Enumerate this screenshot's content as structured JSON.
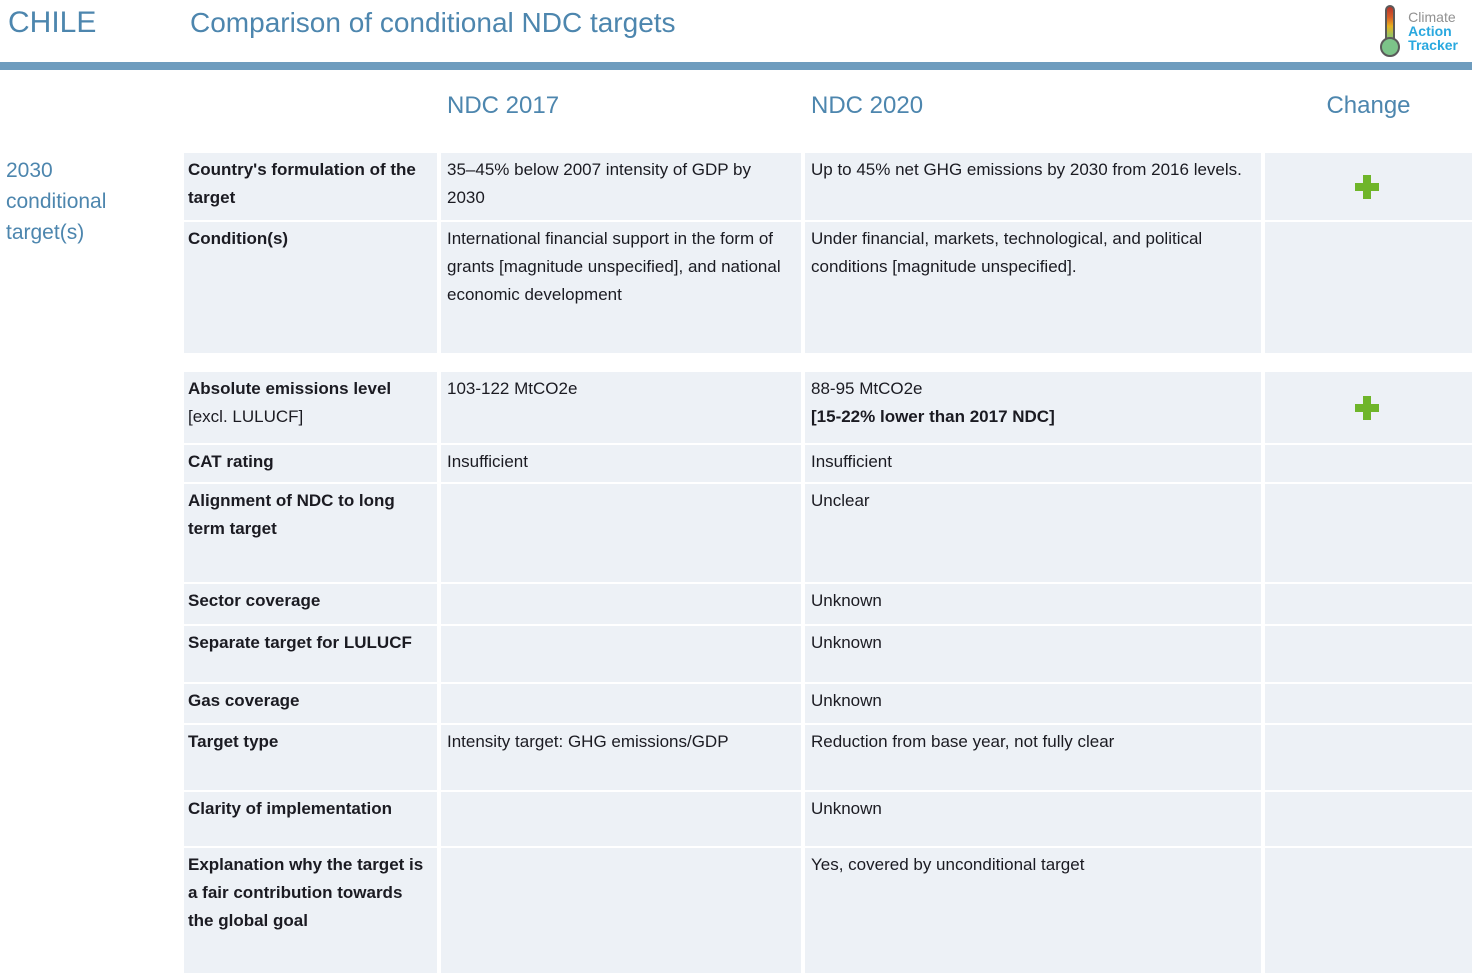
{
  "header": {
    "country": "CHILE",
    "title": "Comparison of conditional NDC targets"
  },
  "logo": {
    "line1": "Climate",
    "line2": "Action",
    "line3": "Tracker"
  },
  "columns": {
    "ndc2017": "NDC 2017",
    "ndc2020": "NDC 2020",
    "change": "Change"
  },
  "sidebar": {
    "label": "2030 conditional target(s)"
  },
  "table": {
    "sections": [
      {
        "rows": [
          {
            "label_bold": "Country's formulation of the target",
            "label_normal": "",
            "ndc2017": "35–45% below 2007 intensity of GDP by 2030",
            "ndc2020": "Up to 45% net GHG emissions by 2030 from 2016 levels.",
            "ndc2020_bold": "",
            "change_icon": "plus-icon"
          },
          {
            "label_bold": "Condition(s)",
            "label_normal": "",
            "ndc2017": "International financial support in the form of grants [magnitude unspecified], and national economic development",
            "ndc2020": "Under financial, markets, technological, and political conditions [magnitude unspecified].",
            "ndc2020_bold": "",
            "change_icon": ""
          }
        ]
      },
      {
        "rows": [
          {
            "label_bold": "Absolute emissions level",
            "label_normal": "[excl. LULUCF]",
            "ndc2017": "103-122 MtCO2e",
            "ndc2020": "88-95 MtCO2e",
            "ndc2020_bold": "[15-22% lower than 2017 NDC]",
            "change_icon": "plus-icon"
          },
          {
            "label_bold": "CAT rating",
            "label_normal": "",
            "ndc2017": "Insufficient",
            "ndc2020": "Insufficient",
            "ndc2020_bold": "",
            "change_icon": ""
          },
          {
            "label_bold": "Alignment of NDC to long term target",
            "label_normal": "",
            "ndc2017": "",
            "ndc2020": "Unclear",
            "ndc2020_bold": "",
            "change_icon": ""
          },
          {
            "label_bold": "Sector coverage",
            "label_normal": "",
            "ndc2017": "",
            "ndc2020": "Unknown",
            "ndc2020_bold": "",
            "change_icon": ""
          },
          {
            "label_bold": "Separate target for LULUCF",
            "label_normal": "",
            "ndc2017": "",
            "ndc2020": "Unknown",
            "ndc2020_bold": "",
            "change_icon": ""
          },
          {
            "label_bold": "Gas coverage",
            "label_normal": "",
            "ndc2017": "",
            "ndc2020": "Unknown",
            "ndc2020_bold": "",
            "change_icon": ""
          },
          {
            "label_bold": "Target type",
            "label_normal": "",
            "ndc2017": "Intensity target: GHG emissions/GDP",
            "ndc2020": "Reduction from base year, not fully clear",
            "ndc2020_bold": "",
            "change_icon": ""
          },
          {
            "label_bold": "Clarity of implementation",
            "label_normal": "",
            "ndc2017": "",
            "ndc2020": "Unknown",
            "ndc2020_bold": "",
            "change_icon": ""
          },
          {
            "label_bold": "Explanation why the target is a fair contribution towards the global goal",
            "label_normal": "",
            "ndc2017": "",
            "ndc2020": "Yes, covered by unconditional target",
            "ndc2020_bold": "",
            "change_icon": ""
          }
        ]
      }
    ]
  },
  "colors": {
    "accent_blue": "#4d86ae",
    "divider_blue": "#6e9cbe",
    "plus_green": "#6fb52a",
    "row_background": "#edf1f6",
    "logo_blue": "#29a8df",
    "logo_gray": "#919191"
  }
}
